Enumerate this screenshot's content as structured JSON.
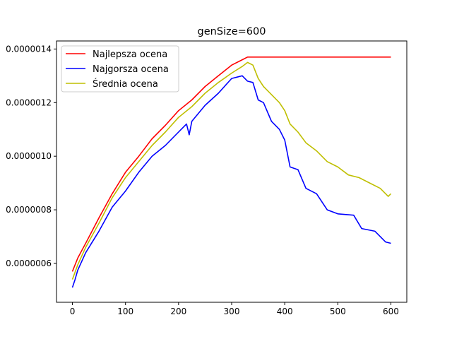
{
  "chart_data": {
    "type": "line",
    "title": "genSize=600",
    "xlabel": "",
    "ylabel": "",
    "xlim": [
      -30,
      630
    ],
    "ylim": [
      4.55e-07,
      1.43e-06
    ],
    "x_ticks": [
      0,
      100,
      200,
      300,
      400,
      500,
      600
    ],
    "x_tick_labels": [
      "0",
      "100",
      "200",
      "300",
      "400",
      "500",
      "600"
    ],
    "y_ticks": [
      6e-07,
      8e-07,
      1e-06,
      1.2e-06,
      1.4e-06
    ],
    "y_tick_labels": [
      "0.0000006",
      "0.0000008",
      "0.0000010",
      "0.0000012",
      "0.0000014"
    ],
    "legend_position": "top-left",
    "grid": false,
    "series": [
      {
        "name": "Najlepsza ocena",
        "color": "#ff0000",
        "points": [
          [
            0,
            5.7e-07
          ],
          [
            10,
            6.2e-07
          ],
          [
            25,
            6.75e-07
          ],
          [
            50,
            7.7e-07
          ],
          [
            75,
            8.6e-07
          ],
          [
            100,
            9.4e-07
          ],
          [
            125,
            1e-06
          ],
          [
            150,
            1.065e-06
          ],
          [
            175,
            1.115e-06
          ],
          [
            200,
            1.17e-06
          ],
          [
            225,
            1.21e-06
          ],
          [
            250,
            1.26e-06
          ],
          [
            275,
            1.3e-06
          ],
          [
            300,
            1.34e-06
          ],
          [
            320,
            1.36e-06
          ],
          [
            330,
            1.37e-06
          ],
          [
            400,
            1.37e-06
          ],
          [
            500,
            1.37e-06
          ],
          [
            600,
            1.37e-06
          ]
        ]
      },
      {
        "name": "Najgorsza ocena",
        "color": "#0000ff",
        "points": [
          [
            0,
            5.1e-07
          ],
          [
            5,
            5.4e-07
          ],
          [
            10,
            5.75e-07
          ],
          [
            25,
            6.4e-07
          ],
          [
            50,
            7.2e-07
          ],
          [
            75,
            8.1e-07
          ],
          [
            100,
            8.7e-07
          ],
          [
            125,
            9.4e-07
          ],
          [
            150,
            1e-06
          ],
          [
            175,
            1.04e-06
          ],
          [
            200,
            1.09e-06
          ],
          [
            215,
            1.12e-06
          ],
          [
            220,
            1.08e-06
          ],
          [
            225,
            1.13e-06
          ],
          [
            250,
            1.19e-06
          ],
          [
            275,
            1.235e-06
          ],
          [
            300,
            1.29e-06
          ],
          [
            320,
            1.3e-06
          ],
          [
            330,
            1.28e-06
          ],
          [
            340,
            1.275e-06
          ],
          [
            350,
            1.21e-06
          ],
          [
            360,
            1.2e-06
          ],
          [
            375,
            1.13e-06
          ],
          [
            390,
            1.1e-06
          ],
          [
            400,
            1.06e-06
          ],
          [
            410,
            9.6e-07
          ],
          [
            425,
            9.5e-07
          ],
          [
            440,
            8.8e-07
          ],
          [
            460,
            8.6e-07
          ],
          [
            480,
            8e-07
          ],
          [
            500,
            7.85e-07
          ],
          [
            530,
            7.8e-07
          ],
          [
            545,
            7.3e-07
          ],
          [
            570,
            7.2e-07
          ],
          [
            590,
            6.8e-07
          ],
          [
            600,
            6.75e-07
          ]
        ]
      },
      {
        "name": "Średnia ocena",
        "color": "#bfbf00",
        "points": [
          [
            0,
            5.4e-07
          ],
          [
            10,
            5.95e-07
          ],
          [
            25,
            6.6e-07
          ],
          [
            50,
            7.5e-07
          ],
          [
            75,
            8.45e-07
          ],
          [
            100,
            9.2e-07
          ],
          [
            125,
            9.8e-07
          ],
          [
            150,
            1.04e-06
          ],
          [
            175,
            1.09e-06
          ],
          [
            200,
            1.145e-06
          ],
          [
            225,
            1.185e-06
          ],
          [
            250,
            1.235e-06
          ],
          [
            275,
            1.275e-06
          ],
          [
            300,
            1.31e-06
          ],
          [
            320,
            1.335e-06
          ],
          [
            330,
            1.35e-06
          ],
          [
            340,
            1.34e-06
          ],
          [
            350,
            1.29e-06
          ],
          [
            360,
            1.26e-06
          ],
          [
            375,
            1.23e-06
          ],
          [
            390,
            1.2e-06
          ],
          [
            400,
            1.17e-06
          ],
          [
            410,
            1.12e-06
          ],
          [
            425,
            1.09e-06
          ],
          [
            440,
            1.05e-06
          ],
          [
            460,
            1.02e-06
          ],
          [
            480,
            9.8e-07
          ],
          [
            500,
            9.6e-07
          ],
          [
            520,
            9.3e-07
          ],
          [
            540,
            9.2e-07
          ],
          [
            560,
            9e-07
          ],
          [
            580,
            8.8e-07
          ],
          [
            595,
            8.5e-07
          ],
          [
            600,
            8.6e-07
          ]
        ]
      }
    ]
  }
}
